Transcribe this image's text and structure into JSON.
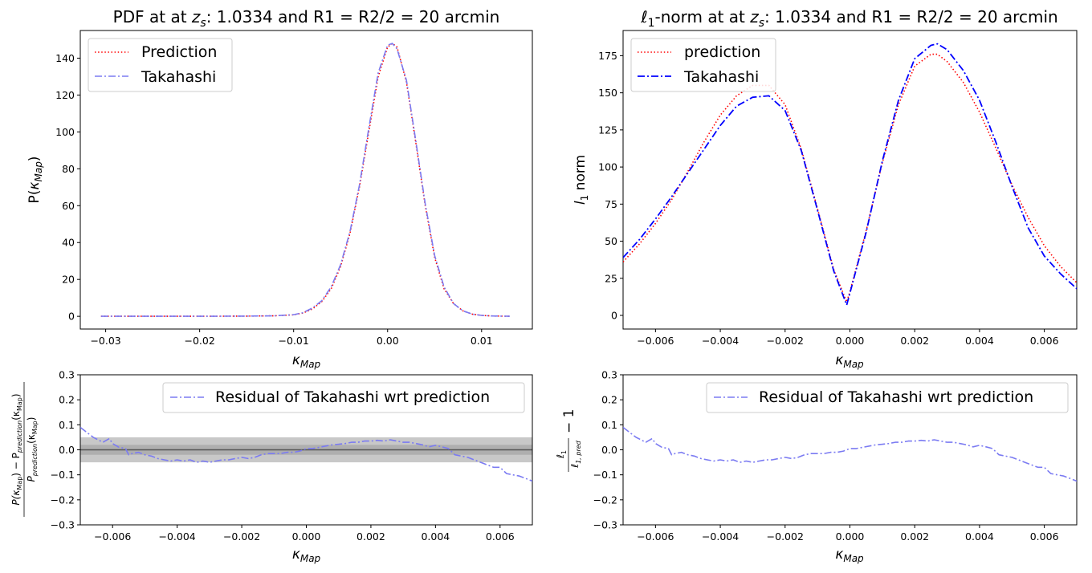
{
  "chart_data": [
    {
      "type": "line",
      "title": "PDF at at z_s: 1.0334 and R1 = R2/2 = 20 arcmin",
      "title_parts": {
        "pre": "PDF at at ",
        "var": "z",
        "sub": "s",
        "post": ": 1.0334 and R1 = R2/2 = 20 arcmin"
      },
      "xlabel": "κ_Map",
      "xlabel_main": "κ",
      "xlabel_sub": "Map",
      "ylabel": "P(κ_Map)",
      "ylabel_pre": "P(",
      "ylabel_var": "κ",
      "ylabel_sub": "Map",
      "ylabel_post": ")",
      "xlim": [
        -0.0327,
        0.0154
      ],
      "ylim": [
        -6.9,
        155
      ],
      "xticks": [
        -0.03,
        -0.02,
        -0.01,
        0.0,
        0.01
      ],
      "xtick_labels": [
        "−0.03",
        "−0.02",
        "−0.01",
        "0.00",
        "0.01"
      ],
      "yticks": [
        0,
        20,
        40,
        60,
        80,
        100,
        120,
        140
      ],
      "ytick_labels": [
        "0",
        "20",
        "40",
        "60",
        "80",
        "100",
        "120",
        "140"
      ],
      "legend": "top-left",
      "grid": false,
      "colors": {
        "prediction": "#ff0000",
        "takahashi": "#7b7bf2"
      },
      "series": [
        {
          "name": "Prediction",
          "style": "dotted",
          "x": [
            -0.0305,
            -0.025,
            -0.02,
            -0.015,
            -0.012,
            -0.01,
            -0.009,
            -0.008,
            -0.007,
            -0.006,
            -0.005,
            -0.004,
            -0.003,
            -0.002,
            -0.001,
            0.0,
            0.0005,
            0.001,
            0.002,
            0.003,
            0.004,
            0.005,
            0.006,
            0.007,
            0.008,
            0.009,
            0.01,
            0.011,
            0.013
          ],
          "y": [
            0,
            0,
            0,
            0.1,
            0.3,
            0.8,
            1.8,
            4,
            8,
            15,
            27,
            45,
            70,
            100,
            130,
            146,
            148,
            146,
            127,
            94,
            60,
            32,
            15,
            7,
            3,
            1.2,
            0.5,
            0.2,
            0
          ]
        },
        {
          "name": "Takahashi",
          "style": "dashdot",
          "x": [
            -0.0305,
            -0.025,
            -0.02,
            -0.015,
            -0.012,
            -0.01,
            -0.009,
            -0.008,
            -0.007,
            -0.006,
            -0.005,
            -0.004,
            -0.003,
            -0.002,
            -0.001,
            0.0,
            0.0005,
            0.001,
            0.002,
            0.003,
            0.004,
            0.005,
            0.006,
            0.007,
            0.008,
            0.009,
            0.01,
            0.011,
            0.013
          ],
          "y": [
            0,
            0,
            0,
            0.1,
            0.3,
            0.9,
            2,
            4.5,
            8.5,
            16,
            28,
            46,
            71,
            102,
            132,
            147,
            148,
            145,
            128,
            95,
            61,
            33,
            16,
            7,
            3,
            1.2,
            0.5,
            0.2,
            0
          ]
        }
      ]
    },
    {
      "type": "line",
      "title": "ℓ1-norm at at z_s: 1.0334 and R1 = R2/2 = 20 arcmin",
      "title_parts": {
        "l": "ℓ",
        "lsub": "1",
        "pre": "-norm at at ",
        "var": "z",
        "sub": "s",
        "post": ": 1.0334 and R1 = R2/2 = 20 arcmin"
      },
      "xlabel": "κ_Map",
      "xlabel_main": "κ",
      "xlabel_sub": "Map",
      "ylabel": "l_1 norm",
      "ylabel_var": "l",
      "ylabel_sub": "1",
      "ylabel_post": " norm",
      "xlim": [
        -0.007,
        0.007
      ],
      "ylim": [
        -9.2,
        192
      ],
      "xticks": [
        -0.006,
        -0.004,
        -0.002,
        0.0,
        0.002,
        0.004,
        0.006
      ],
      "xtick_labels": [
        "−0.006",
        "−0.004",
        "−0.002",
        "0.000",
        "0.002",
        "0.004",
        "0.006"
      ],
      "yticks": [
        0,
        25,
        50,
        75,
        100,
        125,
        150,
        175
      ],
      "ytick_labels": [
        "0",
        "25",
        "50",
        "75",
        "100",
        "125",
        "150",
        "175"
      ],
      "legend": "top-left",
      "grid": false,
      "colors": {
        "prediction": "#ff0000",
        "takahashi": "#0000ff"
      },
      "series": [
        {
          "name": "prediction",
          "style": "dotted",
          "x": [
            -0.007,
            -0.0065,
            -0.006,
            -0.0055,
            -0.005,
            -0.0045,
            -0.004,
            -0.0035,
            -0.003,
            -0.0025,
            -0.002,
            -0.0015,
            -0.001,
            -0.0005,
            -0.0001,
            0.0,
            0.0005,
            0.001,
            0.0015,
            0.002,
            0.0025,
            0.0027,
            0.003,
            0.0035,
            0.004,
            0.0045,
            0.005,
            0.0055,
            0.006,
            0.0065,
            0.007
          ],
          "y": [
            36,
            48,
            62,
            78,
            97,
            117,
            135,
            148,
            155,
            155,
            142,
            112,
            72,
            31,
            9,
            16,
            57,
            103,
            142,
            168,
            176,
            176,
            171,
            157,
            137,
            113,
            88,
            66,
            47,
            33,
            22
          ]
        },
        {
          "name": "Takahashi",
          "style": "dashdot",
          "x": [
            -0.007,
            -0.0065,
            -0.006,
            -0.0055,
            -0.005,
            -0.0045,
            -0.004,
            -0.0035,
            -0.003,
            -0.0025,
            -0.002,
            -0.0015,
            -0.001,
            -0.0005,
            -0.0001,
            0.0,
            0.0005,
            0.001,
            0.0015,
            0.002,
            0.0025,
            0.0027,
            0.003,
            0.0035,
            0.004,
            0.0045,
            0.005,
            0.0055,
            0.006,
            0.0065,
            0.007
          ],
          "y": [
            39,
            51,
            65,
            80,
            96,
            112,
            128,
            141,
            147,
            148,
            138,
            111,
            71,
            30,
            7,
            15,
            56,
            104,
            145,
            173,
            182,
            183,
            179,
            165,
            145,
            117,
            87,
            59,
            40,
            28,
            18
          ]
        }
      ]
    },
    {
      "type": "line",
      "title": "",
      "xlabel": "κ_Map",
      "xlabel_main": "κ",
      "xlabel_sub": "Map",
      "ylabel": "(P(κMap) − P_prediction(κMap)) / P_prediction(κMap)",
      "ylabel_num": "P(κ",
      "ylabel_num_sub": "Map",
      "ylabel_num_mid": ") − P",
      "ylabel_num_sub2": "prediction",
      "ylabel_num_end": "(κ",
      "ylabel_num_sub3": "Map",
      "ylabel_num_close": ")",
      "ylabel_den": "P",
      "ylabel_den_sub": "prediction",
      "ylabel_den_mid": "(κ",
      "ylabel_den_sub2": "Map",
      "ylabel_den_close": ")",
      "xlim": [
        -0.007,
        0.007
      ],
      "ylim": [
        -0.3,
        0.3
      ],
      "xticks": [
        -0.006,
        -0.004,
        -0.002,
        0.0,
        0.002,
        0.004,
        0.006
      ],
      "xtick_labels": [
        "−0.006",
        "−0.004",
        "−0.002",
        "0.000",
        "0.002",
        "0.004",
        "0.006"
      ],
      "yticks": [
        -0.3,
        -0.2,
        -0.1,
        0.0,
        0.1,
        0.2,
        0.3
      ],
      "ytick_labels": [
        "−0.3",
        "−0.2",
        "−0.1",
        "0.0",
        "0.1",
        "0.2",
        "0.3"
      ],
      "legend": "top-right",
      "bands": [
        {
          "from": -0.05,
          "to": 0.05
        },
        {
          "from": -0.02,
          "to": 0.02
        }
      ],
      "reference_line": 0.0,
      "colors": {
        "residual": "#7b7bf2",
        "band": "#9a9a9a",
        "reference": "#555555"
      },
      "series": [
        {
          "name": "Residual of Takahashi wrt prediction",
          "style": "dashdot",
          "x": [
            -0.007,
            -0.0066,
            -0.0063,
            -0.0061,
            -0.006,
            -0.0058,
            -0.0056,
            -0.0055,
            -0.0054,
            -0.0052,
            -0.005,
            -0.0048,
            -0.0046,
            -0.0044,
            -0.0042,
            -0.004,
            -0.0038,
            -0.0036,
            -0.0034,
            -0.0032,
            -0.003,
            -0.0028,
            -0.0026,
            -0.0024,
            -0.0022,
            -0.002,
            -0.0018,
            -0.0016,
            -0.0014,
            -0.0012,
            -0.001,
            -0.0008,
            -0.0006,
            -0.0004,
            -0.0002,
            0.0,
            0.0002,
            0.0004,
            0.0006,
            0.0008,
            0.001,
            0.0012,
            0.0014,
            0.0016,
            0.0018,
            0.002,
            0.0022,
            0.0024,
            0.0026,
            0.0028,
            0.003,
            0.0032,
            0.0034,
            0.0036,
            0.0038,
            0.004,
            0.0042,
            0.0044,
            0.0046,
            0.0048,
            0.005,
            0.0052,
            0.0054,
            0.0056,
            0.0058,
            0.006,
            0.0062,
            0.0064,
            0.0066,
            0.0068,
            0.007
          ],
          "y": [
            0.09,
            0.05,
            0.03,
            0.045,
            0.025,
            0.01,
            0.005,
            -0.02,
            -0.015,
            -0.01,
            -0.02,
            -0.025,
            -0.035,
            -0.04,
            -0.045,
            -0.04,
            -0.045,
            -0.04,
            -0.05,
            -0.045,
            -0.05,
            -0.045,
            -0.04,
            -0.04,
            -0.035,
            -0.03,
            -0.035,
            -0.03,
            -0.02,
            -0.015,
            -0.015,
            -0.015,
            -0.01,
            -0.01,
            -0.005,
            0.005,
            0.005,
            0.01,
            0.015,
            0.02,
            0.022,
            0.025,
            0.03,
            0.03,
            0.035,
            0.035,
            0.038,
            0.035,
            0.04,
            0.035,
            0.03,
            0.03,
            0.025,
            0.02,
            0.012,
            0.018,
            0.012,
            0.005,
            -0.02,
            -0.025,
            -0.03,
            -0.04,
            -0.05,
            -0.06,
            -0.07,
            -0.07,
            -0.095,
            -0.1,
            -0.105,
            -0.115,
            -0.125
          ]
        }
      ]
    },
    {
      "type": "line",
      "title": "",
      "xlabel": "κ_Map",
      "xlabel_main": "κ",
      "xlabel_sub": "Map",
      "ylabel": "ℓ1 / ℓ1,pred − 1",
      "ylabel_num": "ℓ",
      "ylabel_num_sub": "1",
      "ylabel_den": "ℓ",
      "ylabel_den_sub": "1, pred",
      "ylabel_post": "− 1",
      "xlim": [
        -0.007,
        0.007
      ],
      "ylim": [
        -0.3,
        0.3
      ],
      "xticks": [
        -0.006,
        -0.004,
        -0.002,
        0.0,
        0.002,
        0.004,
        0.006
      ],
      "xtick_labels": [
        "−0.006",
        "−0.004",
        "−0.002",
        "0.000",
        "0.002",
        "0.004",
        "0.006"
      ],
      "yticks": [
        -0.3,
        -0.2,
        -0.1,
        0.0,
        0.1,
        0.2,
        0.3
      ],
      "ytick_labels": [
        "−0.3",
        "−0.2",
        "−0.1",
        "0.0",
        "0.1",
        "0.2",
        "0.3"
      ],
      "legend": "top-right",
      "colors": {
        "residual": "#7b7bf2"
      },
      "series": [
        {
          "name": "Residual of Takahashi wrt prediction",
          "style": "dashdot",
          "x": [
            -0.007,
            -0.0066,
            -0.0063,
            -0.0061,
            -0.006,
            -0.0058,
            -0.0056,
            -0.0055,
            -0.0054,
            -0.0052,
            -0.005,
            -0.0048,
            -0.0046,
            -0.0044,
            -0.0042,
            -0.004,
            -0.0038,
            -0.0036,
            -0.0034,
            -0.0032,
            -0.003,
            -0.0028,
            -0.0026,
            -0.0024,
            -0.0022,
            -0.002,
            -0.0018,
            -0.0016,
            -0.0014,
            -0.0012,
            -0.001,
            -0.0008,
            -0.0006,
            -0.0004,
            -0.0002,
            0.0,
            0.0002,
            0.0004,
            0.0006,
            0.0008,
            0.001,
            0.0012,
            0.0014,
            0.0016,
            0.0018,
            0.002,
            0.0022,
            0.0024,
            0.0026,
            0.0028,
            0.003,
            0.0032,
            0.0034,
            0.0036,
            0.0038,
            0.004,
            0.0042,
            0.0044,
            0.0046,
            0.0048,
            0.005,
            0.0052,
            0.0054,
            0.0056,
            0.0058,
            0.006,
            0.0062,
            0.0064,
            0.0066,
            0.0068,
            0.007
          ],
          "y": [
            0.09,
            0.05,
            0.03,
            0.045,
            0.025,
            0.01,
            0.005,
            -0.02,
            -0.015,
            -0.01,
            -0.02,
            -0.025,
            -0.035,
            -0.04,
            -0.045,
            -0.04,
            -0.045,
            -0.04,
            -0.05,
            -0.045,
            -0.05,
            -0.045,
            -0.04,
            -0.04,
            -0.035,
            -0.03,
            -0.035,
            -0.03,
            -0.02,
            -0.015,
            -0.015,
            -0.015,
            -0.01,
            -0.01,
            -0.005,
            0.005,
            0.005,
            0.01,
            0.015,
            0.02,
            0.022,
            0.025,
            0.03,
            0.03,
            0.035,
            0.035,
            0.038,
            0.035,
            0.04,
            0.035,
            0.03,
            0.03,
            0.025,
            0.02,
            0.012,
            0.018,
            0.012,
            0.005,
            -0.02,
            -0.025,
            -0.03,
            -0.04,
            -0.05,
            -0.06,
            -0.07,
            -0.07,
            -0.095,
            -0.1,
            -0.105,
            -0.115,
            -0.125
          ]
        }
      ]
    }
  ]
}
